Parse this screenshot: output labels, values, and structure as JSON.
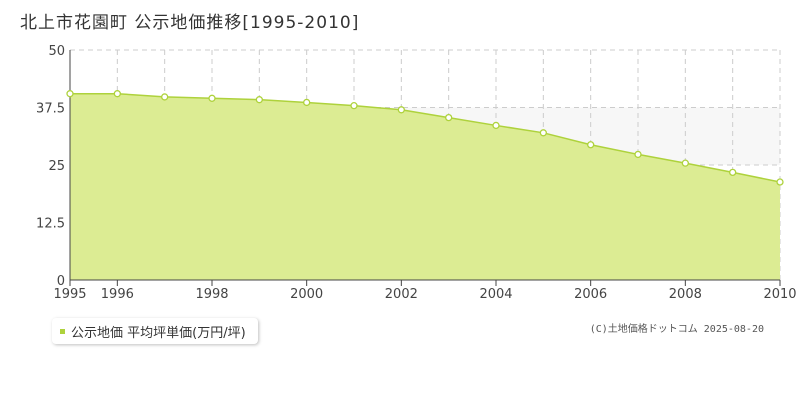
{
  "title": "北上市花園町 公示地価推移[1995-2010]",
  "chart_data": {
    "type": "area",
    "x": [
      1995,
      1996,
      1997,
      1998,
      1999,
      2000,
      2001,
      2002,
      2003,
      2004,
      2005,
      2006,
      2007,
      2008,
      2009,
      2010
    ],
    "series": [
      {
        "name": "公示地価 平均坪単価(万円/坪)",
        "values": [
          40.5,
          40.5,
          39.8,
          39.5,
          39.2,
          38.6,
          37.9,
          37.0,
          35.3,
          33.6,
          32.0,
          29.4,
          27.3,
          25.4,
          23.4,
          21.3
        ]
      }
    ],
    "xticks": [
      "1995",
      "1996",
      "1998",
      "2000",
      "2002",
      "2004",
      "2006",
      "2008",
      "2010"
    ],
    "yticks": [
      "0",
      "12.5",
      "25",
      "37.5",
      "50"
    ],
    "ylim": [
      0,
      50
    ],
    "xlim": [
      1995,
      2010
    ],
    "grid": true,
    "colors": {
      "fill": "#dcec93",
      "line": "#aed23c",
      "grid": "#cccccc",
      "upper_band": "#f7f7f7"
    }
  },
  "legend": {
    "label": "公示地価 平均坪単価(万円/坪)"
  },
  "credit": "(C)土地価格ドットコム 2025-08-20"
}
